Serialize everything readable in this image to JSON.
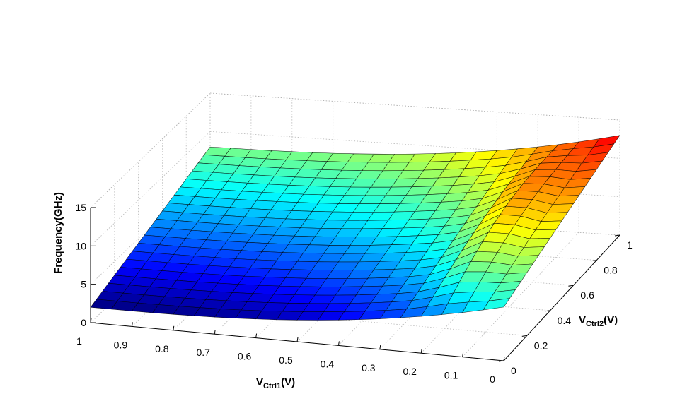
{
  "chart_data": {
    "type": "surface",
    "title": "",
    "xlabel": {
      "main": "V",
      "sub": "Ctrl1",
      "unit": "(V)"
    },
    "ylabel": {
      "main": "V",
      "sub": "Ctrl2",
      "unit": "(V)"
    },
    "zlabel": "Frequency(GHz)",
    "xlim": [
      0,
      1
    ],
    "ylim": [
      0,
      1
    ],
    "zlim": [
      0,
      15
    ],
    "x_ticks": [
      "0",
      "0.1",
      "0.2",
      "0.3",
      "0.4",
      "0.5",
      "0.6",
      "0.7",
      "0.8",
      "0.9",
      "1"
    ],
    "y_ticks": [
      "0",
      "0.2",
      "0.4",
      "0.6",
      "0.8",
      "1"
    ],
    "z_ticks": [
      "0",
      "5",
      "10",
      "15"
    ],
    "colormap": "jet",
    "grid": true,
    "x": [
      0,
      0.05,
      0.1,
      0.15,
      0.2,
      0.25,
      0.3,
      0.35,
      0.4,
      0.45,
      0.5,
      0.55,
      0.6,
      0.65,
      0.7,
      0.75,
      0.8,
      0.85,
      0.9,
      0.95,
      1
    ],
    "y": [
      0,
      0.05,
      0.1,
      0.15,
      0.2,
      0.25,
      0.3,
      0.35,
      0.4,
      0.45,
      0.5,
      0.55,
      0.6,
      0.65,
      0.7,
      0.75,
      0.8,
      0.85,
      0.9,
      0.95,
      1
    ],
    "z_corner_values": {
      "x1_y0": 2.0,
      "x1_y1": 8.0,
      "x0_y1": 13.0,
      "x0_y0": 7.0
    }
  }
}
